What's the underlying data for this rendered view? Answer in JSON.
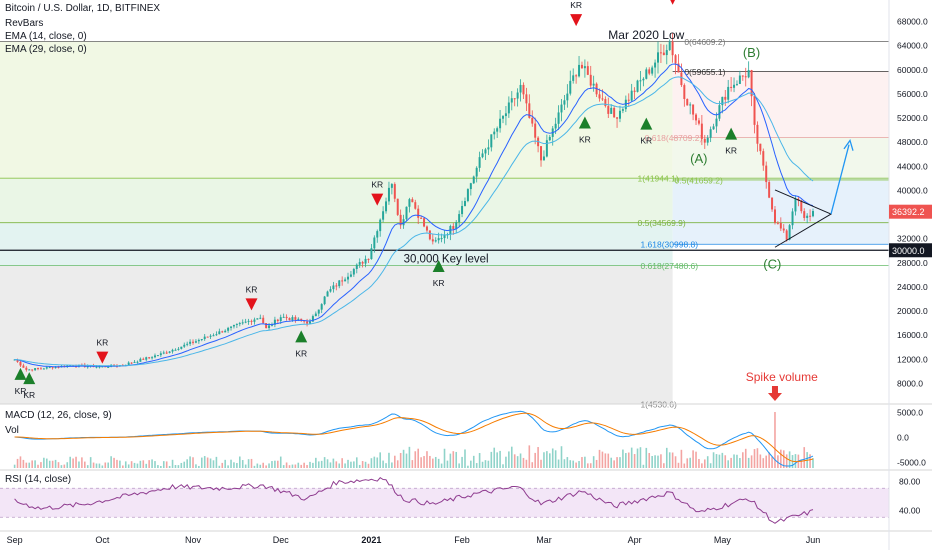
{
  "header": {
    "title": "Bitcoin / U.S. Dollar, 1D, BITFINEX",
    "indicators": [
      "RevBars",
      "EMA (14, close, 0)",
      "EMA (29, close, 0)"
    ]
  },
  "panes": {
    "macd_label": "MACD (12, 26, close, 9)",
    "vol_label": "Vol",
    "rsi_label": "RSI (14, close)"
  },
  "colors": {
    "up": "#26a69a",
    "down": "#ef5350",
    "ema14": "#2962ff",
    "ema29": "#4ab6e8",
    "kr_up": "#1b7f2a",
    "kr_down": "#e3131b",
    "fib_green": "#43a047",
    "rsi": "#8e3b8f",
    "macd": "#2196f3",
    "signal": "#f57c00",
    "annot_green": "#2e7d32",
    "spike": "#e53935",
    "projection": "#2196f3"
  },
  "chart_data": [
    {
      "type": "candlestick",
      "title": "Bitcoin / U.S. Dollar, 1D, BITFINEX",
      "xlabel": "",
      "ylabel": "",
      "x_ticks": [
        "Sep",
        "Oct",
        "Nov",
        "Dec",
        "2021",
        "Feb",
        "Mar",
        "Apr",
        "May",
        "Jun"
      ],
      "y_ticks": [
        8000,
        12000,
        16000,
        20000,
        24000,
        28000,
        32000,
        36000,
        40000,
        44000,
        48000,
        52000,
        56000,
        60000,
        64000,
        68000
      ],
      "ylim": [
        4500,
        69500
      ],
      "log_scale": false,
      "grid": false,
      "price_path": [
        [
          "Sep 1",
          11900
        ],
        [
          "Sep 5",
          10200
        ],
        [
          "Sep 20",
          10900
        ],
        [
          "Oct 1",
          10700
        ],
        [
          "Oct 8",
          11000
        ],
        [
          "Oct 21",
          12800
        ],
        [
          "Nov 5",
          15500
        ],
        [
          "Nov 24",
          19000
        ],
        [
          "Nov 26",
          17000
        ],
        [
          "Dec 1",
          19000
        ],
        [
          "Dec 11",
          18000
        ],
        [
          "Dec 17",
          23000
        ],
        [
          "Dec 31",
          29000
        ],
        [
          "Jan 8",
          41500
        ],
        [
          "Jan 11",
          34000
        ],
        [
          "Jan 14",
          39000
        ],
        [
          "Jan 22",
          31000
        ],
        [
          "Jan 29",
          34000
        ],
        [
          "Feb 8",
          46000
        ],
        [
          "Feb 21",
          57000
        ],
        [
          "Feb 28",
          45000
        ],
        [
          "Mar 13",
          61000
        ],
        [
          "Mar 25",
          52000
        ],
        [
          "Apr 13",
          64600
        ],
        [
          "Apr 18",
          56000
        ],
        [
          "Apr 25",
          48000
        ],
        [
          "May 3",
          57000
        ],
        [
          "May 10",
          59600
        ],
        [
          "May 12",
          50000
        ],
        [
          "May 19",
          35000
        ],
        [
          "May 23",
          32000
        ],
        [
          "May 26",
          39000
        ],
        [
          "May 29",
          35000
        ],
        [
          "Jun 1",
          36392
        ]
      ],
      "series": [
        {
          "name": "EMA (14, close, 0)",
          "kind": "line"
        },
        {
          "name": "EMA (29, close, 0)",
          "kind": "line"
        }
      ],
      "price_labels": [
        "36392.2",
        "30000.0"
      ],
      "horizontal_levels": [
        {
          "label": "0(64609.2)",
          "value": 64609
        },
        {
          "label": "0(59655.1)",
          "value": 59655
        },
        {
          "label": "0.618(48709.2)",
          "value": 48709
        },
        {
          "label": "1(41944.1)",
          "value": 41944
        },
        {
          "label": "0.5(41659.2)",
          "value": 41659
        },
        {
          "label": "0.5(34569.9)",
          "value": 34570
        },
        {
          "label": "1.618(30998.8)",
          "value": 30999
        },
        {
          "label": "0.618(27480.6)",
          "value": 27481
        },
        {
          "label": "1(4530.6)",
          "value": 4531
        }
      ],
      "key_level": {
        "label": "30,000 Key level",
        "value": 30000
      },
      "kr_signals": [
        {
          "date": "Sep 3",
          "dir": "up"
        },
        {
          "date": "Sep 6",
          "dir": "up"
        },
        {
          "date": "Oct 1",
          "dir": "down"
        },
        {
          "date": "Nov 21",
          "dir": "down"
        },
        {
          "date": "Dec 8",
          "dir": "up"
        },
        {
          "date": "Jan 3",
          "dir": "down"
        },
        {
          "date": "Jan 24",
          "dir": "up"
        },
        {
          "date": "Mar 12",
          "dir": "down"
        },
        {
          "date": "Mar 15",
          "dir": "up"
        },
        {
          "date": "Apr 5",
          "dir": "up"
        },
        {
          "date": "Apr 14",
          "dir": "down"
        },
        {
          "date": "May 4",
          "dir": "up"
        }
      ],
      "kr_label": "KR",
      "annotations": [
        "Mar 2020 Low",
        "(A)",
        "(B)",
        "(C)",
        "Spike volume"
      ]
    },
    {
      "type": "line",
      "title": "MACD (12, 26, close, 9)",
      "y_ticks": [
        "5000.0",
        "0.0",
        "-5000.0"
      ],
      "ylim": [
        -6500,
        6500
      ],
      "series": [
        {
          "name": "MACD"
        },
        {
          "name": "Signal"
        }
      ],
      "volume_label": "Vol"
    },
    {
      "type": "line",
      "title": "RSI (14, close)",
      "y_ticks": [
        "80.00",
        "40.00"
      ],
      "ylim": [
        15,
        90
      ],
      "bands": [
        70,
        30
      ],
      "series": [
        {
          "name": "RSI"
        }
      ],
      "path": [
        [
          "Sep 1",
          52
        ],
        [
          "Sep 10",
          42
        ],
        [
          "Sep 25",
          48
        ],
        [
          "Oct 10",
          60
        ],
        [
          "Oct 25",
          72
        ],
        [
          "Nov 10",
          70
        ],
        [
          "Nov 25",
          74
        ],
        [
          "Dec 10",
          55
        ],
        [
          "Dec 20",
          78
        ],
        [
          "Jan 5",
          84
        ],
        [
          "Jan 12",
          55
        ],
        [
          "Jan 22",
          48
        ],
        [
          "Feb 5",
          62
        ],
        [
          "Feb 20",
          72
        ],
        [
          "Feb 28",
          48
        ],
        [
          "Mar 14",
          66
        ],
        [
          "Mar 25",
          45
        ],
        [
          "Apr 13",
          64
        ],
        [
          "Apr 23",
          36
        ],
        [
          "May 10",
          56
        ],
        [
          "May 19",
          22
        ],
        [
          "May 25",
          30
        ],
        [
          "Jun 1",
          38
        ]
      ]
    }
  ]
}
